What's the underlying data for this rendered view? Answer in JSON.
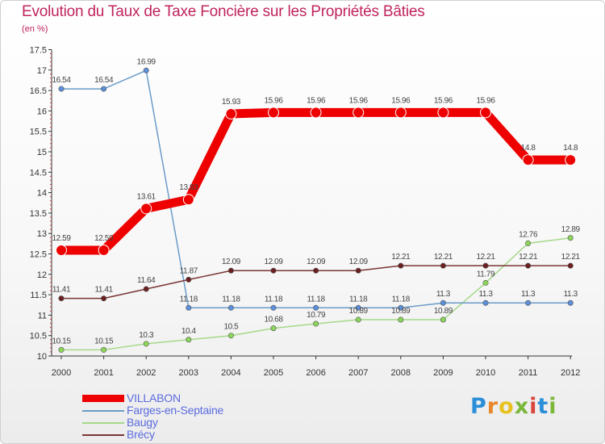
{
  "title": "Evolution du Taux de Taxe Foncière sur les Propriétés Bâties",
  "subtitle": "(en %)",
  "logo": {
    "text": "Proxiti",
    "colors": [
      "#2a8fd8",
      "#e8872a",
      "#e8c21f",
      "#7ab83a",
      "#d9453c",
      "#2a8fd8",
      "#7ab83a"
    ]
  },
  "chart_data": {
    "type": "line",
    "title": "Evolution du Taux de Taxe Foncière sur les Propriétés Bâties",
    "ylabel": "(en %)",
    "xlabel": "",
    "x": [
      "2000",
      "2001",
      "2002",
      "2003",
      "2004",
      "2005",
      "2006",
      "2007",
      "2008",
      "2009",
      "2010",
      "2011",
      "2012"
    ],
    "ylim": [
      10,
      17.5
    ],
    "yticks": [
      "10",
      "10.5",
      "11",
      "11.5",
      "12",
      "12.5",
      "13",
      "13.5",
      "14",
      "14.5",
      "15",
      "15.5",
      "16",
      "16.5",
      "17",
      "17.5"
    ],
    "grid": false,
    "legend_position": "bottom-left",
    "series": [
      {
        "name": "VILLABON",
        "color": "#ee0000",
        "values": [
          12.59,
          12.59,
          13.61,
          13.83,
          15.93,
          15.96,
          15.96,
          15.96,
          15.96,
          15.96,
          15.96,
          14.8,
          14.8
        ],
        "labels": [
          "12.59",
          "12.59",
          "13.61",
          "13.83",
          "15.93",
          "15.96",
          "15.96",
          "15.96",
          "15.96",
          "15.96",
          "15.96",
          "14.8",
          "14.8"
        ]
      },
      {
        "name": "Farges-en-Septaine",
        "color": "#6a9cc8",
        "point_color": "#5b8fd9",
        "values": [
          16.54,
          16.54,
          16.99,
          11.18,
          11.18,
          11.18,
          11.18,
          11.18,
          11.18,
          11.3,
          11.3,
          11.3,
          11.3
        ],
        "labels": [
          "16.54",
          "16.54",
          "16.99",
          "11.18",
          "11.18",
          "11.18",
          "11.18",
          "11.18",
          "11.18",
          "11.3",
          "11.3",
          "11.3",
          "11.3"
        ]
      },
      {
        "name": "Baugy",
        "color": "#a6d98a",
        "point_color": "#8cd65a",
        "values": [
          10.15,
          10.15,
          10.3,
          10.4,
          10.5,
          10.68,
          10.79,
          10.89,
          10.89,
          10.89,
          11.79,
          12.76,
          12.89
        ],
        "labels": [
          "10.15",
          "10.15",
          "10.3",
          "10.4",
          "10.5",
          "10.68",
          "10.79",
          "10.89",
          "10.89",
          "10.89",
          "11.79",
          "12.76",
          "12.89"
        ]
      },
      {
        "name": "Brécy",
        "color": "#7a3535",
        "point_color": "#6b1f1f",
        "values": [
          11.41,
          11.41,
          11.64,
          11.87,
          12.09,
          12.09,
          12.09,
          12.09,
          12.21,
          12.21,
          12.21,
          12.21,
          12.21
        ],
        "labels": [
          "11.41",
          "11.41",
          "11.64",
          "11.87",
          "12.09",
          "12.09",
          "12.09",
          "12.09",
          "12.21",
          "12.21",
          "12.21",
          "12.21",
          "12.21"
        ]
      }
    ]
  }
}
